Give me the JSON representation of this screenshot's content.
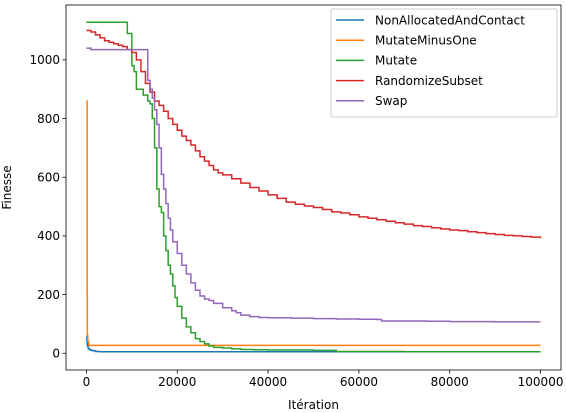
{
  "chart_data": {
    "type": "line",
    "title": "",
    "xlabel": "Itération",
    "ylabel": "Finesse",
    "xlim": [
      -4500,
      104500
    ],
    "ylim": [
      -57,
      1187
    ],
    "xticks": [
      0,
      20000,
      40000,
      60000,
      80000,
      100000
    ],
    "xtick_labels": [
      "0",
      "20000",
      "40000",
      "60000",
      "80000",
      "100000"
    ],
    "yticks": [
      0,
      200,
      400,
      600,
      800,
      1000
    ],
    "ytick_labels": [
      "0",
      "200",
      "400",
      "600",
      "800",
      "1000"
    ],
    "grid": false,
    "legend_position": "top-right",
    "series": [
      {
        "name": "NonAllocatedAndContact",
        "color": "#1f77b4",
        "x": [
          0,
          100,
          200,
          400,
          700,
          1000,
          1500,
          2000,
          3000,
          100000
        ],
        "y": [
          60,
          40,
          25,
          15,
          12,
          10,
          8,
          6,
          5,
          5
        ]
      },
      {
        "name": "MutateMinusOne",
        "color": "#ff7f0e",
        "x": [
          0,
          100,
          150,
          200,
          300,
          500,
          100000
        ],
        "y": [
          860,
          860,
          200,
          60,
          40,
          27,
          27
        ]
      },
      {
        "name": "Mutate",
        "color": "#2ca02c",
        "x": [
          0,
          2000,
          6000,
          8500,
          9000,
          10000,
          10500,
          11000,
          12000,
          12500,
          13000,
          13500,
          14000,
          14500,
          15000,
          15500,
          16000,
          16500,
          17000,
          17500,
          18000,
          18500,
          19000,
          19500,
          20000,
          21000,
          22000,
          23000,
          24000,
          25000,
          26000,
          27000,
          28000,
          30000,
          32000,
          34000,
          37000,
          40000,
          45000,
          50000,
          53000,
          55000,
          60000,
          70000,
          80000,
          90000,
          100000
        ],
        "y": [
          1128,
          1128,
          1128,
          1128,
          1090,
          980,
          960,
          900,
          900,
          880,
          880,
          860,
          850,
          800,
          700,
          560,
          500,
          480,
          400,
          350,
          300,
          270,
          230,
          190,
          160,
          120,
          90,
          70,
          50,
          40,
          32,
          25,
          20,
          18,
          15,
          13,
          12,
          11,
          11,
          10,
          10,
          6,
          6,
          5,
          5,
          5,
          5
        ]
      },
      {
        "name": "RandomizeSubset",
        "color": "#d62728",
        "x": [
          0,
          1000,
          2000,
          3000,
          4000,
          5000,
          6000,
          7000,
          8000,
          9000,
          10000,
          11000,
          12000,
          13000,
          14000,
          15000,
          16000,
          17000,
          18000,
          19000,
          20000,
          21000,
          22000,
          23000,
          24000,
          25000,
          26000,
          27000,
          28000,
          29000,
          30000,
          32000,
          34000,
          36000,
          38000,
          40000,
          42000,
          44000,
          46000,
          48000,
          50000,
          52000,
          54000,
          56000,
          58000,
          60000,
          62000,
          64000,
          66000,
          68000,
          70000,
          72000,
          74000,
          76000,
          78000,
          80000,
          82000,
          84000,
          86000,
          88000,
          90000,
          92000,
          94000,
          96000,
          98000,
          100000
        ],
        "y": [
          1100,
          1095,
          1085,
          1075,
          1065,
          1060,
          1055,
          1050,
          1045,
          1035,
          1025,
          1000,
          960,
          920,
          890,
          860,
          845,
          825,
          800,
          780,
          760,
          740,
          725,
          710,
          690,
          670,
          655,
          640,
          625,
          615,
          608,
          595,
          580,
          565,
          553,
          540,
          528,
          515,
          508,
          502,
          497,
          490,
          482,
          478,
          472,
          465,
          460,
          455,
          450,
          445,
          440,
          435,
          432,
          428,
          424,
          420,
          418,
          414,
          411,
          408,
          405,
          402,
          400,
          398,
          396,
          392
        ]
      },
      {
        "name": "Swap",
        "color": "#9467bd",
        "x": [
          0,
          1000,
          2000,
          5000,
          8000,
          10000,
          12000,
          13000,
          13500,
          14000,
          14500,
          15000,
          15500,
          16000,
          16500,
          17000,
          17500,
          18000,
          18500,
          19000,
          20000,
          21000,
          22000,
          23000,
          24000,
          25000,
          26000,
          27000,
          28000,
          30000,
          32000,
          33000,
          34000,
          36000,
          38000,
          40000,
          45000,
          50000,
          55000,
          60000,
          64000,
          65000,
          70000,
          75000,
          80000,
          85000,
          90000,
          95000,
          100000
        ],
        "y": [
          1040,
          1035,
          1035,
          1035,
          1035,
          1035,
          1035,
          1035,
          930,
          900,
          870,
          830,
          780,
          700,
          610,
          560,
          510,
          460,
          420,
          380,
          340,
          300,
          270,
          240,
          215,
          195,
          185,
          180,
          170,
          155,
          145,
          138,
          130,
          125,
          122,
          121,
          120,
          118,
          117,
          116,
          115,
          110,
          110,
          109,
          108,
          108,
          107,
          107,
          107
        ]
      }
    ]
  }
}
